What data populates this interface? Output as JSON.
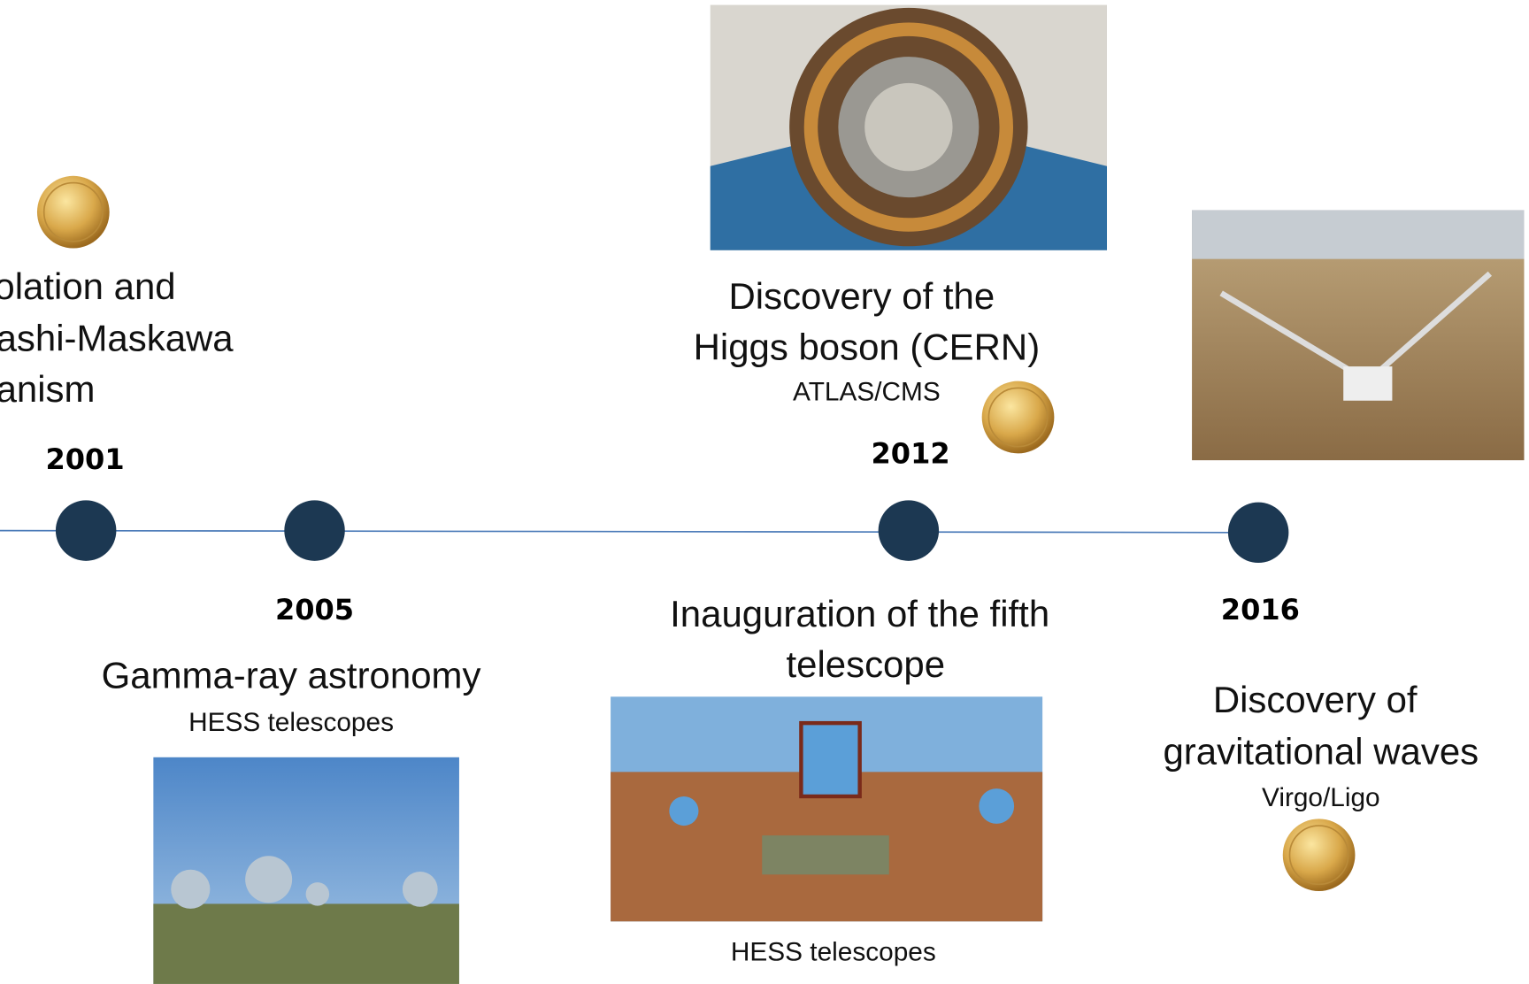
{
  "events": [
    {
      "year": "2001",
      "title_lines": [
        "olation and",
        "ashi-Maskawa",
        "anism"
      ]
    },
    {
      "year": "2005",
      "title_lines": [
        "Gamma-ray astronomy"
      ],
      "subtitle": "HESS telescopes"
    },
    {
      "year": "2012",
      "title_lines": [
        "Discovery of the",
        "Higgs boson (CERN)"
      ],
      "subtitle": "ATLAS/CMS"
    },
    {
      "year": "2016",
      "title_lines": [
        "Discovery of",
        "gravitational waves"
      ],
      "subtitle": "Virgo/Ligo"
    }
  ],
  "milestone": {
    "title_lines": [
      "Inauguration of the fifth",
      "telescope"
    ],
    "caption": "HESS telescopes"
  }
}
